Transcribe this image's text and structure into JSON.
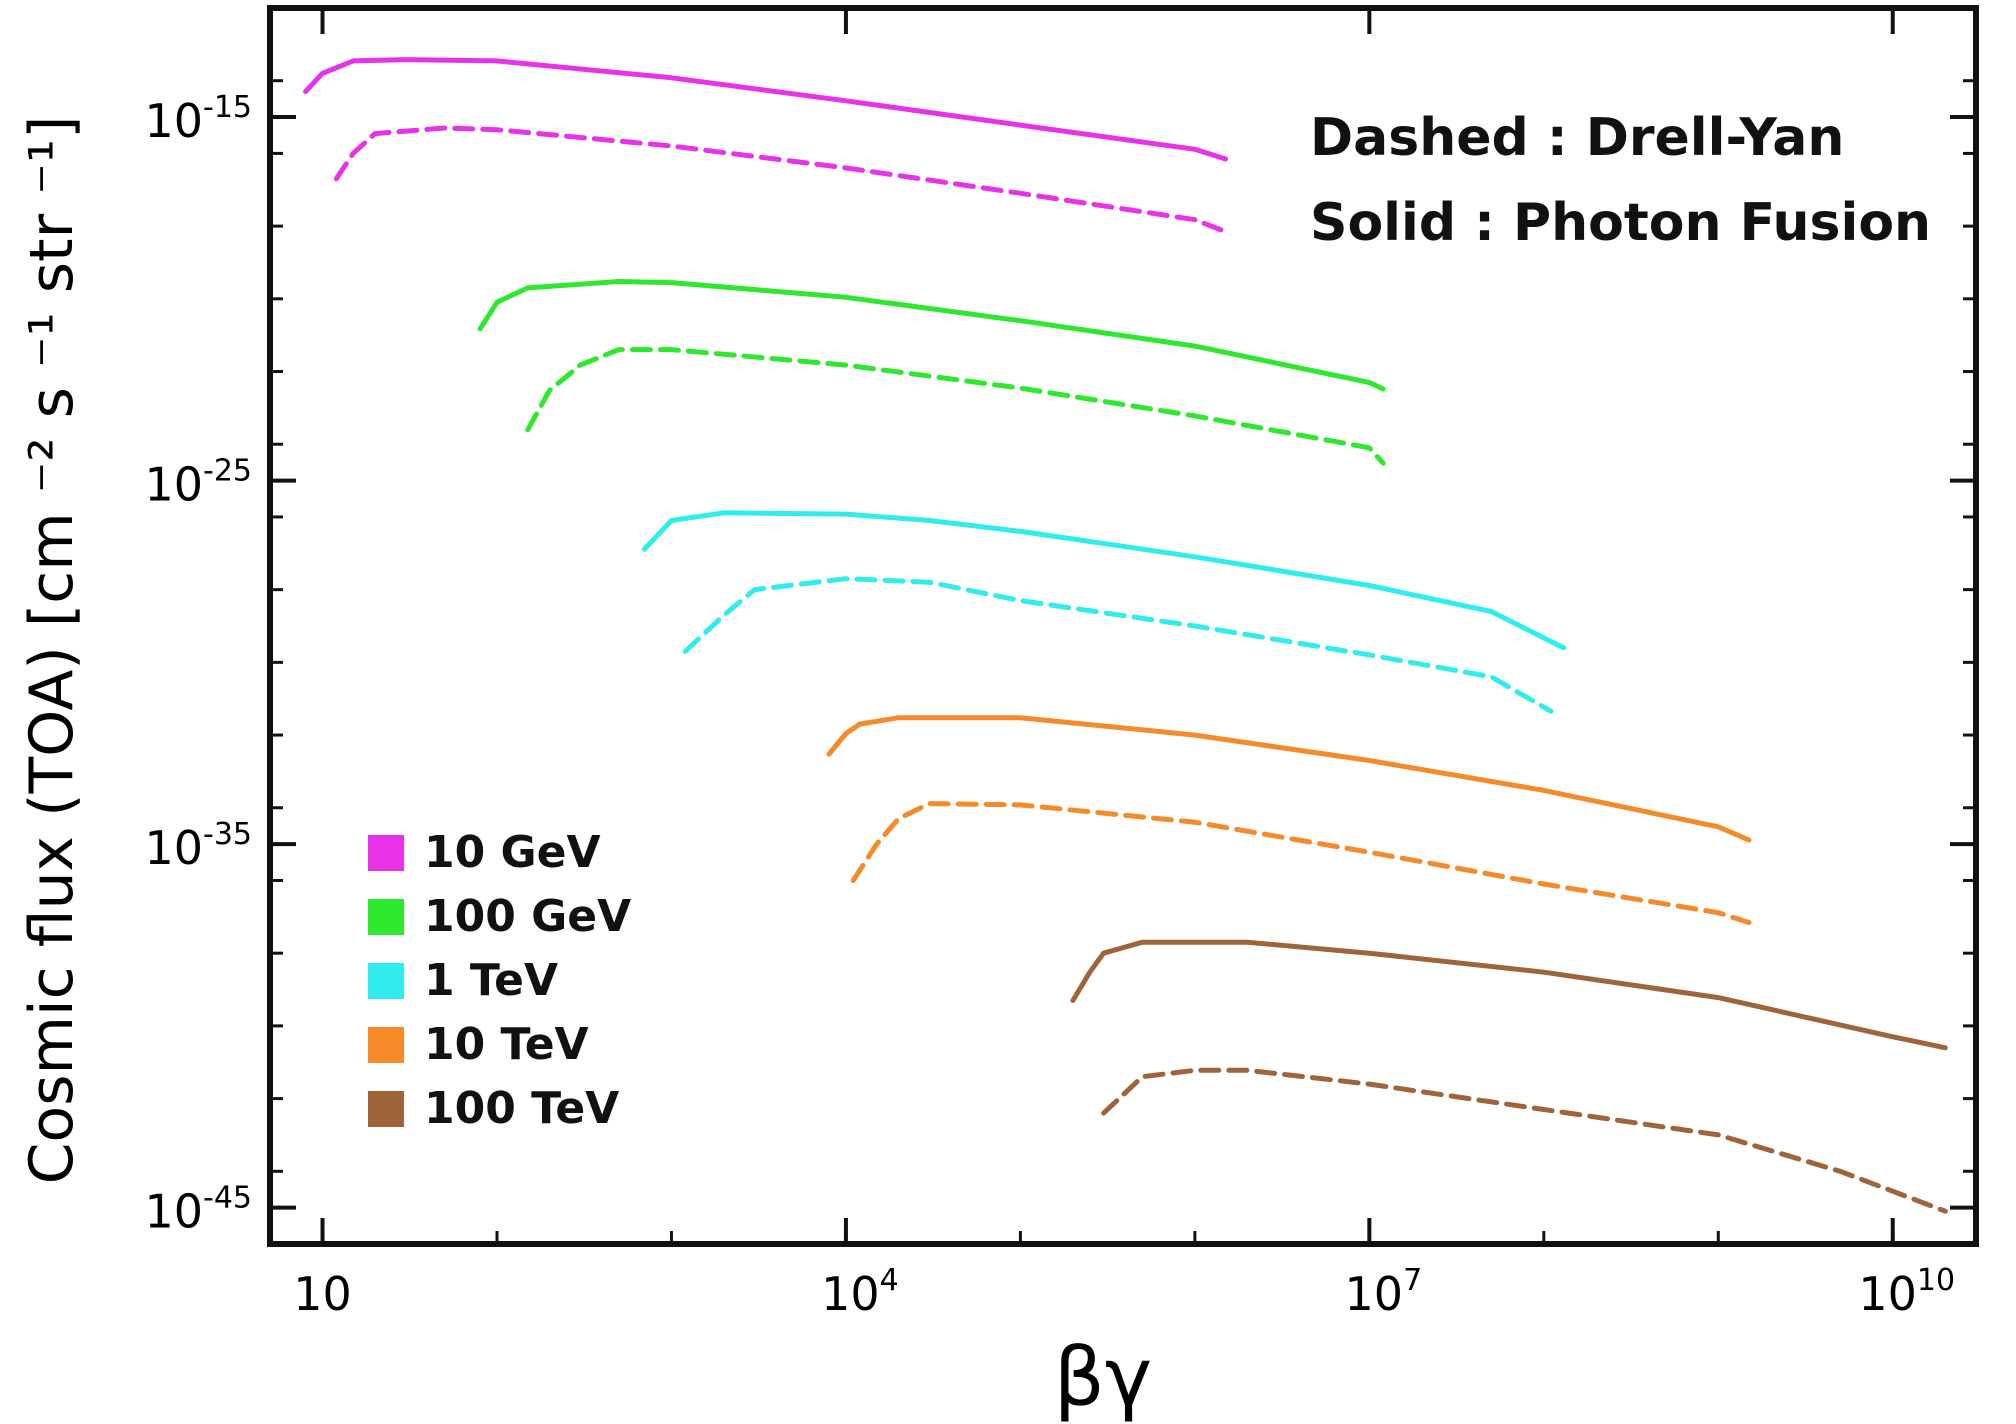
{
  "chart_data": {
    "type": "line",
    "title": "",
    "xlabel": "βγ",
    "ylabel": "Cosmic flux  (TOA)  [cm ⁻² s ⁻¹ str ⁻¹]",
    "xscale": "log",
    "yscale": "log",
    "xlim": [
      5,
      30000000000
    ],
    "ylim": [
      1e-46,
      1e-12
    ],
    "x_ticks": [
      {
        "value": 10,
        "base": "10",
        "exp": ""
      },
      {
        "value": 10000,
        "base": "10",
        "exp": "4"
      },
      {
        "value": 10000000,
        "base": "10",
        "exp": "7"
      },
      {
        "value": 10000000000,
        "base": "10",
        "exp": "10"
      }
    ],
    "y_ticks": [
      {
        "value": 1e-15,
        "base": "10",
        "exp": "-15"
      },
      {
        "value": 1e-25,
        "base": "10",
        "exp": "-25"
      },
      {
        "value": 1e-35,
        "base": "10",
        "exp": "-35"
      },
      {
        "value": 1e-45,
        "base": "10",
        "exp": "-45"
      }
    ],
    "grid": false,
    "annotations": [
      "Dashed : Drell-Yan",
      "Solid : Photon Fusion"
    ],
    "legend": {
      "placement": "bottom-left",
      "entries": [
        {
          "label": "10 GeV",
          "color": "#e832e8"
        },
        {
          "label": "100 GeV",
          "color": "#2ee82e"
        },
        {
          "label": "1 TeV",
          "color": "#30ecec"
        },
        {
          "label": "10 TeV",
          "color": "#f58a2a"
        },
        {
          "label": "100 TeV",
          "color": "#a0643a"
        }
      ]
    },
    "series": [
      {
        "group": "10 GeV",
        "style": "solid",
        "color": "#e832e8",
        "x": [
          8,
          10,
          15,
          30,
          100,
          1000,
          10000,
          100000,
          1000000,
          1500000
        ],
        "y": [
          5e-15,
          1.6e-14,
          3.5e-14,
          3.8e-14,
          3.5e-14,
          1.2e-14,
          2.8e-15,
          6e-16,
          1.3e-16,
          7e-17
        ]
      },
      {
        "group": "10 GeV",
        "style": "dashed",
        "color": "#e832e8",
        "x": [
          12,
          15,
          20,
          50,
          100,
          1000,
          10000,
          100000,
          1000000,
          1500000
        ],
        "y": [
          2e-17,
          1e-16,
          3.5e-16,
          5e-16,
          4.5e-16,
          1.6e-16,
          4e-17,
          8e-18,
          1.5e-18,
          7e-19
        ]
      },
      {
        "group": "100 GeV",
        "style": "solid",
        "color": "#2ee82e",
        "x": [
          80,
          100,
          150,
          500,
          1000,
          10000,
          100000,
          1000000,
          10000000,
          12000000
        ],
        "y": [
          1.5e-21,
          8e-21,
          2e-20,
          3e-20,
          2.8e-20,
          1.1e-20,
          2.5e-21,
          5e-22,
          5e-23,
          3.3e-23
        ]
      },
      {
        "group": "100 GeV",
        "style": "dashed",
        "color": "#2ee82e",
        "x": [
          150,
          200,
          300,
          500,
          1000,
          10000,
          100000,
          1000000,
          10000000,
          12000000
        ],
        "y": [
          2.5e-24,
          3e-23,
          1.5e-22,
          4e-22,
          4e-22,
          1.5e-22,
          3.5e-23,
          6e-24,
          8e-25,
          3e-25
        ]
      },
      {
        "group": "1 TeV",
        "style": "solid",
        "color": "#30ecec",
        "x": [
          700,
          1000,
          2000,
          10000,
          30000,
          100000,
          1000000,
          10000000,
          50000000,
          130000000
        ],
        "y": [
          1.3e-27,
          8e-27,
          1.3e-26,
          1.2e-26,
          8e-27,
          4e-27,
          8e-28,
          1.3e-28,
          2.5e-29,
          2.5e-30
        ]
      },
      {
        "group": "1 TeV",
        "style": "dashed",
        "color": "#30ecec",
        "x": [
          1200,
          2000,
          3000,
          10000,
          30000,
          100000,
          1000000,
          10000000,
          50000000,
          110000000
        ],
        "y": [
          2e-30,
          2e-29,
          1e-28,
          2e-28,
          1.6e-28,
          5e-29,
          1e-29,
          1.6e-30,
          4e-31,
          4.5e-32
        ]
      },
      {
        "group": "10 TeV",
        "style": "solid",
        "color": "#f58a2a",
        "x": [
          8000,
          10000,
          12000,
          20000,
          100000,
          1000000,
          10000000,
          100000000,
          1000000000,
          1500000000
        ],
        "y": [
          3e-33,
          1.1e-32,
          2e-32,
          3e-32,
          3e-32,
          1e-32,
          2e-33,
          3e-34,
          3e-35,
          1.3e-35
        ]
      },
      {
        "group": "10 TeV",
        "style": "dashed",
        "color": "#f58a2a",
        "x": [
          11000,
          15000,
          20000,
          30000,
          100000,
          1000000,
          10000000,
          100000000,
          1000000000,
          1500000000
        ],
        "y": [
          1e-36,
          1e-35,
          5e-35,
          1.3e-34,
          1.2e-34,
          4e-35,
          6e-36,
          8e-37,
          1.3e-37,
          7e-38
        ]
      },
      {
        "group": "100 TeV",
        "style": "solid",
        "color": "#a0643a",
        "x": [
          200000,
          250000,
          300000,
          500000,
          2000000,
          10000000,
          100000000,
          1000000000,
          10000000000,
          20000000000
        ],
        "y": [
          5e-40,
          3e-39,
          1e-38,
          2e-38,
          2e-38,
          1e-38,
          3e-39,
          6e-40,
          5e-41,
          2.5e-41
        ]
      },
      {
        "group": "100 TeV",
        "style": "dashed",
        "color": "#a0643a",
        "x": [
          300000,
          500000,
          1000000,
          2000000,
          10000000,
          100000000,
          1000000000,
          5000000000,
          20000000000
        ],
        "y": [
          4e-43,
          4e-42,
          6e-42,
          6e-42,
          2.5e-42,
          5e-43,
          1e-43,
          1e-44,
          8e-46
        ]
      }
    ]
  }
}
